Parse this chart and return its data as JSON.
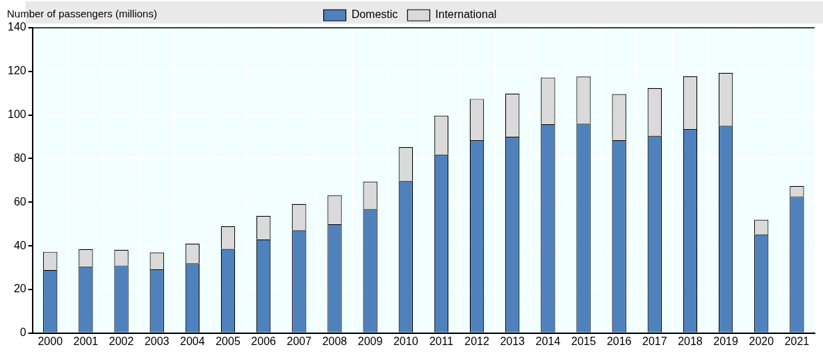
{
  "chart_data": {
    "type": "bar",
    "stacked": true,
    "ylabel": "Number of passengers (millions)",
    "categories": [
      "2000",
      "2001",
      "2002",
      "2003",
      "2004",
      "2005",
      "2006",
      "2007",
      "2008",
      "2009",
      "2010",
      "2011",
      "2012",
      "2013",
      "2014",
      "2015",
      "2016",
      "2017",
      "2018",
      "2019",
      "2020",
      "2021"
    ],
    "series": [
      {
        "name": "Domestic",
        "color": "#4f81bd",
        "values": [
          29,
          30.6,
          31,
          29.2,
          32,
          38.6,
          43,
          47.2,
          50,
          56.8,
          69.8,
          81.9,
          88.4,
          90,
          95.8,
          96,
          88.5,
          90.5,
          93.5,
          95,
          45.3,
          62.6
        ]
      },
      {
        "name": "International",
        "color": "#dadada",
        "values": [
          8.3,
          7.9,
          7.2,
          7.8,
          9,
          10.4,
          10.7,
          12,
          13.2,
          12.7,
          15.5,
          17.8,
          19,
          19.8,
          21.4,
          21.6,
          21.1,
          21.9,
          24.2,
          24.3,
          6.7,
          4.8
        ]
      }
    ],
    "ylim": [
      0,
      140
    ],
    "yticks": [
      0,
      20,
      40,
      60,
      80,
      100,
      120,
      140
    ],
    "grid": true,
    "legend": "top"
  }
}
